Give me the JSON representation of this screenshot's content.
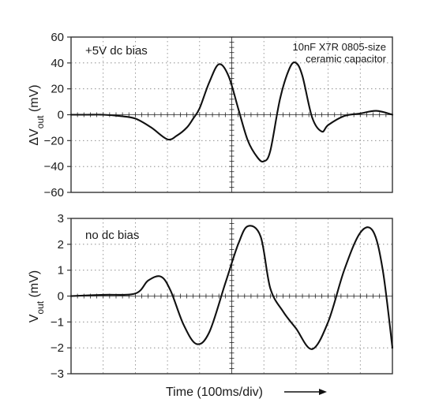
{
  "chart_data": [
    {
      "type": "line",
      "panel": "top",
      "annotation_left": "+5V dc bias",
      "annotation_right_lines": [
        "10nF X7R 0805-size",
        "ceramic capacitor"
      ],
      "ylabel": {
        "prefix": "ΔV",
        "sub": "out",
        "suffix": " (mV)"
      },
      "xlabel": "",
      "ylim": [
        -60,
        60
      ],
      "yticks": [
        -60,
        -40,
        -20,
        0,
        20,
        40,
        60
      ],
      "ytick_labels": [
        "−60",
        "−40",
        "−20",
        "0",
        "20",
        "40",
        "60"
      ],
      "xlim": [
        0,
        10
      ],
      "x_divisions": 10,
      "y_divisions": 6,
      "grid": true,
      "series": [
        {
          "x": [
            0,
            0.5,
            1.0,
            1.5,
            2.0,
            2.5,
            3.0,
            3.3,
            3.6,
            3.8,
            4.0,
            4.3,
            4.6,
            4.9,
            5.2,
            5.5,
            5.8,
            6.0,
            6.2,
            6.5,
            6.8,
            7.0,
            7.2,
            7.5,
            7.8,
            8.0,
            8.5,
            9.0,
            9.5,
            10.0
          ],
          "y": [
            0,
            0,
            0,
            -1,
            -3,
            -10,
            -19,
            -16,
            -10,
            -3,
            5,
            25,
            39,
            30,
            5,
            -20,
            -33,
            -36,
            -28,
            12,
            36,
            40,
            30,
            -2,
            -13,
            -8,
            -1,
            1,
            3,
            0
          ]
        }
      ]
    },
    {
      "type": "line",
      "panel": "bottom",
      "annotation_left": "no dc bias",
      "ylabel": {
        "prefix": "V",
        "sub": "out",
        "suffix": " (mV)"
      },
      "xlabel": "Time (100ms/div)",
      "ylim": [
        -3,
        3
      ],
      "yticks": [
        -3,
        -2,
        -1,
        0,
        1,
        2,
        3
      ],
      "ytick_labels": [
        "−3",
        "−2",
        "−1",
        "0",
        "1",
        "2",
        "3"
      ],
      "xlim": [
        0,
        10
      ],
      "x_divisions": 10,
      "y_divisions": 6,
      "grid": true,
      "series": [
        {
          "x": [
            0,
            1.0,
            2.0,
            2.4,
            2.8,
            3.1,
            3.5,
            3.9,
            4.3,
            4.8,
            5.2,
            5.5,
            5.9,
            6.2,
            6.6,
            7.0,
            7.5,
            8.0,
            8.5,
            9.0,
            9.4,
            9.7,
            10.0
          ],
          "y": [
            0,
            0.05,
            0.1,
            0.6,
            0.75,
            0.2,
            -1.1,
            -1.85,
            -1.4,
            0.5,
            2.0,
            2.7,
            2.3,
            0.3,
            -0.6,
            -1.25,
            -2.05,
            -1.0,
            1.0,
            2.45,
            2.5,
            1.0,
            -2.0
          ]
        }
      ]
    }
  ]
}
